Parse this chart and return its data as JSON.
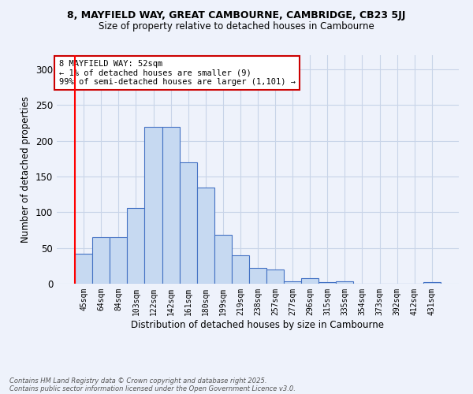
{
  "title1": "8, MAYFIELD WAY, GREAT CAMBOURNE, CAMBRIDGE, CB23 5JJ",
  "title2": "Size of property relative to detached houses in Cambourne",
  "xlabel": "Distribution of detached houses by size in Cambourne",
  "ylabel": "Number of detached properties",
  "categories": [
    "45sqm",
    "64sqm",
    "84sqm",
    "103sqm",
    "122sqm",
    "142sqm",
    "161sqm",
    "180sqm",
    "199sqm",
    "219sqm",
    "238sqm",
    "257sqm",
    "277sqm",
    "296sqm",
    "315sqm",
    "335sqm",
    "354sqm",
    "373sqm",
    "392sqm",
    "412sqm",
    "431sqm"
  ],
  "values": [
    42,
    65,
    65,
    106,
    220,
    220,
    170,
    135,
    68,
    40,
    22,
    20,
    3,
    8,
    2,
    3,
    0,
    0,
    0,
    0,
    2
  ],
  "bar_color": "#c6d9f1",
  "bar_edge_color": "#4472c4",
  "annotation_text": "8 MAYFIELD WAY: 52sqm\n← 1% of detached houses are smaller (9)\n99% of semi-detached houses are larger (1,101) →",
  "annotation_box_color": "#ffffff",
  "annotation_box_edge_color": "#cc0000",
  "ylim": [
    0,
    320
  ],
  "yticks": [
    0,
    50,
    100,
    150,
    200,
    250,
    300
  ],
  "background_color": "#eef2fb",
  "grid_color": "#c8d4e8",
  "footnote1": "Contains HM Land Registry data © Crown copyright and database right 2025.",
  "footnote2": "Contains public sector information licensed under the Open Government Licence v3.0."
}
